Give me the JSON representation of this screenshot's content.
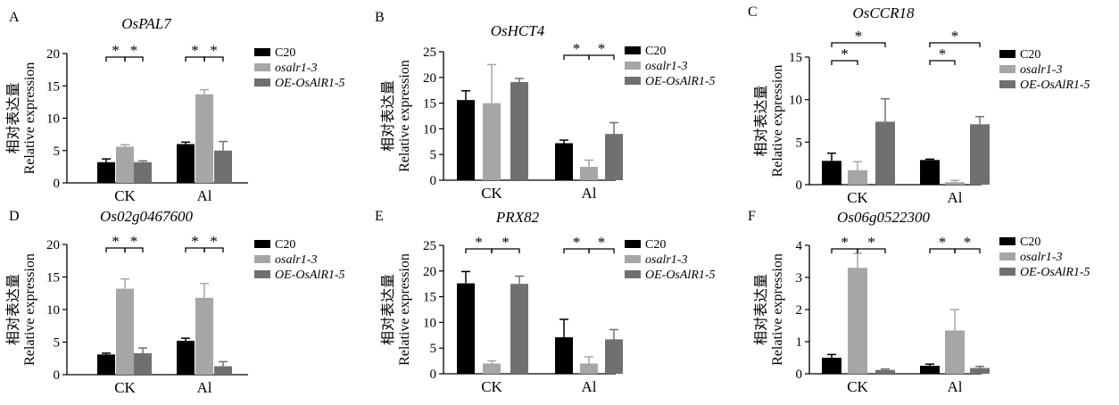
{
  "legend": {
    "items": [
      {
        "label": "C20",
        "italic": false,
        "color": "#000000"
      },
      {
        "label": "osalr1-3",
        "italic": true,
        "color": "#a6a6a6"
      },
      {
        "label": "OE-OsAlR1-5",
        "italic": true,
        "color": "#707070"
      }
    ]
  },
  "ylabel": {
    "cn": "相对表达量",
    "en": "Relative expression"
  },
  "significance_marker": "*",
  "chart_data": [
    {
      "panel": "A",
      "type": "bar",
      "title": "OsPAL7",
      "categories": [
        "CK",
        "Al"
      ],
      "ylim": [
        0,
        20
      ],
      "yticks": [
        0,
        5,
        10,
        15,
        20
      ],
      "series": [
        {
          "name": "C20",
          "values": [
            3.2,
            6.0
          ],
          "errors": [
            0.5,
            0.3
          ]
        },
        {
          "name": "osalr1-3",
          "values": [
            5.6,
            13.7
          ],
          "errors": [
            0.3,
            0.7
          ]
        },
        {
          "name": "OE-OsAlR1-5",
          "values": [
            3.2,
            5.0
          ],
          "errors": [
            0.2,
            1.4
          ]
        }
      ],
      "significance": [
        {
          "category": 0,
          "from": 0,
          "to": 1
        },
        {
          "category": 0,
          "from": 1,
          "to": 2
        },
        {
          "category": 1,
          "from": 0,
          "to": 1
        },
        {
          "category": 1,
          "from": 1,
          "to": 2
        }
      ]
    },
    {
      "panel": "B",
      "type": "bar",
      "title": "OsHCT4",
      "categories": [
        "CK",
        "Al"
      ],
      "ylim": [
        0,
        25
      ],
      "yticks": [
        0,
        5,
        10,
        15,
        20,
        25
      ],
      "series": [
        {
          "name": "C20",
          "values": [
            15.6,
            7.2
          ],
          "errors": [
            1.8,
            0.6
          ]
        },
        {
          "name": "osalr1-3",
          "values": [
            15.0,
            2.6
          ],
          "errors": [
            7.5,
            1.3
          ]
        },
        {
          "name": "OE-OsAlR1-5",
          "values": [
            19.1,
            9.0
          ],
          "errors": [
            0.7,
            2.2
          ]
        }
      ],
      "significance": [
        {
          "category": 1,
          "from": 0,
          "to": 1
        },
        {
          "category": 1,
          "from": 1,
          "to": 2
        }
      ]
    },
    {
      "panel": "C",
      "type": "bar",
      "title": "OsCCR18",
      "categories": [
        "CK",
        "Al"
      ],
      "ylim": [
        0,
        15
      ],
      "yticks": [
        0,
        5,
        10,
        15
      ],
      "series": [
        {
          "name": "C20",
          "values": [
            2.8,
            2.9
          ],
          "errors": [
            0.9,
            0.1
          ]
        },
        {
          "name": "osalr1-3",
          "values": [
            1.7,
            0.3
          ],
          "errors": [
            1.0,
            0.2
          ]
        },
        {
          "name": "OE-OsAlR1-5",
          "values": [
            7.4,
            7.1
          ],
          "errors": [
            2.7,
            0.9
          ]
        }
      ],
      "significance": [
        {
          "category": 0,
          "from": 0,
          "to": 1
        },
        {
          "category": 0,
          "from": 0,
          "to": 2
        },
        {
          "category": 1,
          "from": 0,
          "to": 1
        },
        {
          "category": 1,
          "from": 0,
          "to": 2
        }
      ]
    },
    {
      "panel": "D",
      "type": "bar",
      "title": "Os02g0467600",
      "categories": [
        "CK",
        "Al"
      ],
      "ylim": [
        0,
        20
      ],
      "yticks": [
        0,
        5,
        10,
        15,
        20
      ],
      "series": [
        {
          "name": "C20",
          "values": [
            3.1,
            5.2
          ],
          "errors": [
            0.2,
            0.4
          ]
        },
        {
          "name": "osalr1-3",
          "values": [
            13.2,
            11.8
          ],
          "errors": [
            1.5,
            2.2
          ]
        },
        {
          "name": "OE-OsAlR1-5",
          "values": [
            3.3,
            1.3
          ],
          "errors": [
            0.8,
            0.7
          ]
        }
      ],
      "significance": [
        {
          "category": 0,
          "from": 0,
          "to": 1
        },
        {
          "category": 0,
          "from": 1,
          "to": 2
        },
        {
          "category": 1,
          "from": 0,
          "to": 1
        },
        {
          "category": 1,
          "from": 1,
          "to": 2
        }
      ]
    },
    {
      "panel": "E",
      "type": "bar",
      "title": "PRX82",
      "categories": [
        "CK",
        "Al"
      ],
      "ylim": [
        0,
        25
      ],
      "yticks": [
        0,
        5,
        10,
        15,
        20,
        25
      ],
      "series": [
        {
          "name": "C20",
          "values": [
            17.6,
            7.1
          ],
          "errors": [
            2.3,
            3.5
          ]
        },
        {
          "name": "osalr1-3",
          "values": [
            2.0,
            2.0
          ],
          "errors": [
            0.5,
            1.3
          ]
        },
        {
          "name": "OE-OsAlR1-5",
          "values": [
            17.5,
            6.7
          ],
          "errors": [
            1.5,
            1.9
          ]
        }
      ],
      "significance": [
        {
          "category": 0,
          "from": 0,
          "to": 1
        },
        {
          "category": 0,
          "from": 1,
          "to": 2
        },
        {
          "category": 1,
          "from": 0,
          "to": 1
        },
        {
          "category": 1,
          "from": 1,
          "to": 2
        }
      ]
    },
    {
      "panel": "F",
      "type": "bar",
      "title": "Os06g0522300",
      "categories": [
        "CK",
        "Al"
      ],
      "ylim": [
        0,
        4
      ],
      "yticks": [
        0,
        1,
        2,
        3,
        4
      ],
      "series": [
        {
          "name": "C20",
          "values": [
            0.5,
            0.25
          ],
          "errors": [
            0.1,
            0.05
          ]
        },
        {
          "name": "osalr1-3",
          "values": [
            3.3,
            1.35
          ],
          "errors": [
            0.45,
            0.65
          ]
        },
        {
          "name": "OE-OsAlR1-5",
          "values": [
            0.12,
            0.18
          ],
          "errors": [
            0.03,
            0.05
          ]
        }
      ],
      "significance": [
        {
          "category": 0,
          "from": 0,
          "to": 1
        },
        {
          "category": 0,
          "from": 1,
          "to": 2
        },
        {
          "category": 1,
          "from": 0,
          "to": 1
        },
        {
          "category": 1,
          "from": 1,
          "to": 2
        }
      ]
    }
  ]
}
